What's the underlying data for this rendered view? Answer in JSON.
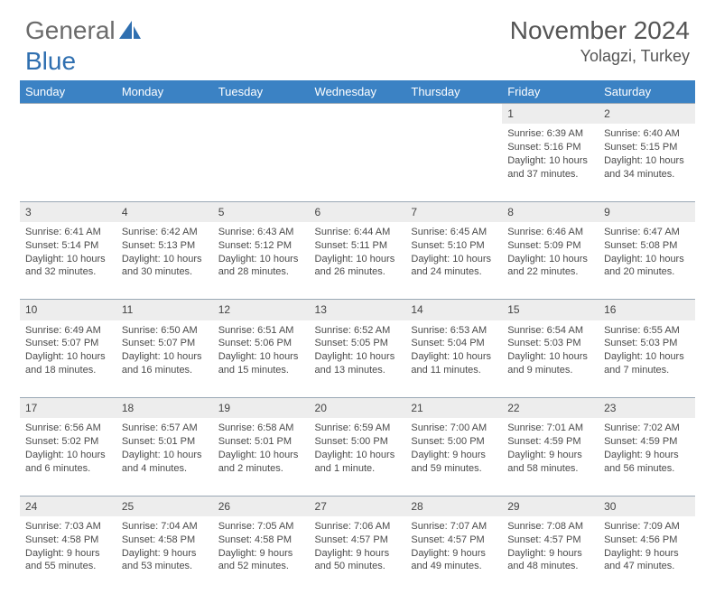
{
  "brand": {
    "word1": "General",
    "word2": "Blue"
  },
  "title": "November 2024",
  "location": "Yolagzi, Turkey",
  "headers": [
    "Sunday",
    "Monday",
    "Tuesday",
    "Wednesday",
    "Thursday",
    "Friday",
    "Saturday"
  ],
  "colors": {
    "header_bg": "#3b82c4",
    "header_text": "#ffffff",
    "daynum_bg": "#ededed",
    "daynum_border": "#9aa8b5",
    "text": "#4a4a4a",
    "brand_gray": "#6b6b6b",
    "brand_blue": "#2f6fb0"
  },
  "weeks": [
    [
      null,
      null,
      null,
      null,
      null,
      {
        "n": "1",
        "sr": "6:39 AM",
        "ss": "5:16 PM",
        "dl": "10 hours and 37 minutes."
      },
      {
        "n": "2",
        "sr": "6:40 AM",
        "ss": "5:15 PM",
        "dl": "10 hours and 34 minutes."
      }
    ],
    [
      {
        "n": "3",
        "sr": "6:41 AM",
        "ss": "5:14 PM",
        "dl": "10 hours and 32 minutes."
      },
      {
        "n": "4",
        "sr": "6:42 AM",
        "ss": "5:13 PM",
        "dl": "10 hours and 30 minutes."
      },
      {
        "n": "5",
        "sr": "6:43 AM",
        "ss": "5:12 PM",
        "dl": "10 hours and 28 minutes."
      },
      {
        "n": "6",
        "sr": "6:44 AM",
        "ss": "5:11 PM",
        "dl": "10 hours and 26 minutes."
      },
      {
        "n": "7",
        "sr": "6:45 AM",
        "ss": "5:10 PM",
        "dl": "10 hours and 24 minutes."
      },
      {
        "n": "8",
        "sr": "6:46 AM",
        "ss": "5:09 PM",
        "dl": "10 hours and 22 minutes."
      },
      {
        "n": "9",
        "sr": "6:47 AM",
        "ss": "5:08 PM",
        "dl": "10 hours and 20 minutes."
      }
    ],
    [
      {
        "n": "10",
        "sr": "6:49 AM",
        "ss": "5:07 PM",
        "dl": "10 hours and 18 minutes."
      },
      {
        "n": "11",
        "sr": "6:50 AM",
        "ss": "5:07 PM",
        "dl": "10 hours and 16 minutes."
      },
      {
        "n": "12",
        "sr": "6:51 AM",
        "ss": "5:06 PM",
        "dl": "10 hours and 15 minutes."
      },
      {
        "n": "13",
        "sr": "6:52 AM",
        "ss": "5:05 PM",
        "dl": "10 hours and 13 minutes."
      },
      {
        "n": "14",
        "sr": "6:53 AM",
        "ss": "5:04 PM",
        "dl": "10 hours and 11 minutes."
      },
      {
        "n": "15",
        "sr": "6:54 AM",
        "ss": "5:03 PM",
        "dl": "10 hours and 9 minutes."
      },
      {
        "n": "16",
        "sr": "6:55 AM",
        "ss": "5:03 PM",
        "dl": "10 hours and 7 minutes."
      }
    ],
    [
      {
        "n": "17",
        "sr": "6:56 AM",
        "ss": "5:02 PM",
        "dl": "10 hours and 6 minutes."
      },
      {
        "n": "18",
        "sr": "6:57 AM",
        "ss": "5:01 PM",
        "dl": "10 hours and 4 minutes."
      },
      {
        "n": "19",
        "sr": "6:58 AM",
        "ss": "5:01 PM",
        "dl": "10 hours and 2 minutes."
      },
      {
        "n": "20",
        "sr": "6:59 AM",
        "ss": "5:00 PM",
        "dl": "10 hours and 1 minute."
      },
      {
        "n": "21",
        "sr": "7:00 AM",
        "ss": "5:00 PM",
        "dl": "9 hours and 59 minutes."
      },
      {
        "n": "22",
        "sr": "7:01 AM",
        "ss": "4:59 PM",
        "dl": "9 hours and 58 minutes."
      },
      {
        "n": "23",
        "sr": "7:02 AM",
        "ss": "4:59 PM",
        "dl": "9 hours and 56 minutes."
      }
    ],
    [
      {
        "n": "24",
        "sr": "7:03 AM",
        "ss": "4:58 PM",
        "dl": "9 hours and 55 minutes."
      },
      {
        "n": "25",
        "sr": "7:04 AM",
        "ss": "4:58 PM",
        "dl": "9 hours and 53 minutes."
      },
      {
        "n": "26",
        "sr": "7:05 AM",
        "ss": "4:58 PM",
        "dl": "9 hours and 52 minutes."
      },
      {
        "n": "27",
        "sr": "7:06 AM",
        "ss": "4:57 PM",
        "dl": "9 hours and 50 minutes."
      },
      {
        "n": "28",
        "sr": "7:07 AM",
        "ss": "4:57 PM",
        "dl": "9 hours and 49 minutes."
      },
      {
        "n": "29",
        "sr": "7:08 AM",
        "ss": "4:57 PM",
        "dl": "9 hours and 48 minutes."
      },
      {
        "n": "30",
        "sr": "7:09 AM",
        "ss": "4:56 PM",
        "dl": "9 hours and 47 minutes."
      }
    ]
  ],
  "labels": {
    "sunrise": "Sunrise:",
    "sunset": "Sunset:",
    "daylight": "Daylight:"
  }
}
